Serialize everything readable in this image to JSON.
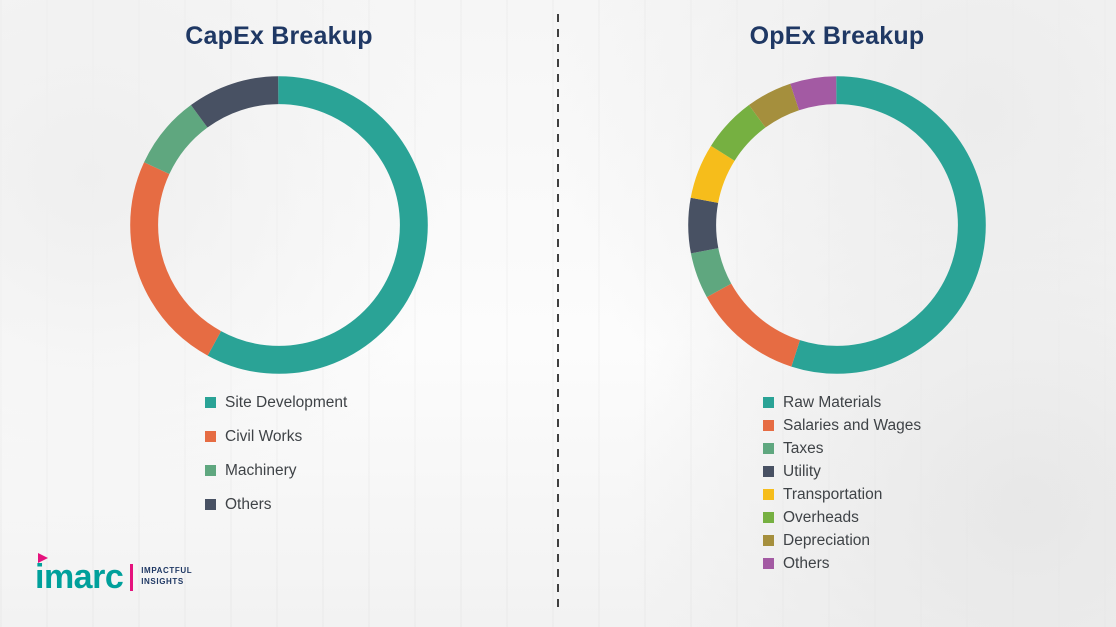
{
  "chart_data": [
    {
      "type": "pie",
      "subtype": "donut",
      "title": "CapEx Breakup",
      "legend_position": "bottom-left",
      "units": "percent",
      "labels": [
        "Site Development",
        "Civil Works",
        "Machinery",
        "Others"
      ],
      "values": [
        58,
        24,
        8,
        10
      ],
      "colors": [
        "#2aa396",
        "#e66c43",
        "#5fa77f",
        "#485163"
      ]
    },
    {
      "type": "pie",
      "subtype": "donut",
      "title": "OpEx Breakup",
      "legend_position": "bottom-left",
      "units": "percent",
      "labels": [
        "Raw Materials",
        "Salaries and Wages",
        "Taxes",
        "Utility",
        "Transportation",
        "Overheads",
        "Depreciation",
        "Others"
      ],
      "values": [
        55,
        12,
        5,
        6,
        6,
        6,
        5,
        5
      ],
      "colors": [
        "#2aa396",
        "#e66c43",
        "#5fa77f",
        "#485163",
        "#f6bd1b",
        "#76b041",
        "#a58f3d",
        "#a35aa3"
      ]
    }
  ],
  "logo": {
    "brand": "imarc",
    "tagline_line1": "IMPACTFUL",
    "tagline_line2": "INSIGHTS",
    "brand_color": "#00a09b",
    "accent_color": "#e5127d"
  },
  "theme": {
    "title_color": "#1f3864",
    "legend_text_color": "#3f4347",
    "divider_color": "#3f3f3f",
    "background_color": "#fcfcfc"
  }
}
